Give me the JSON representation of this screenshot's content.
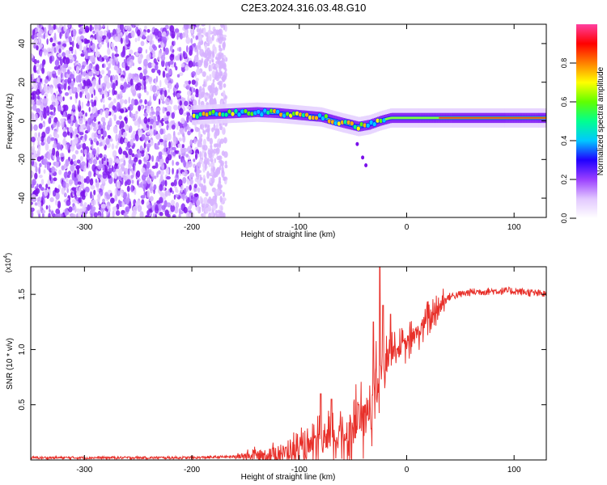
{
  "title": "C2E3.2024.316.03.48.G10",
  "chart_data": [
    {
      "type": "heatmap",
      "xlabel": "Height of straight line (km)",
      "ylabel": "Frequency (Hz)",
      "xlim": [
        -350,
        130
      ],
      "ylim": [
        -50,
        50
      ],
      "x_ticks": [
        -300,
        -200,
        -100,
        0,
        100
      ],
      "x_tick_labels": [
        "-300",
        "-200",
        "-100",
        "0",
        "100"
      ],
      "y_ticks": [
        -40,
        -20,
        0,
        20,
        40
      ],
      "y_tick_labels": [
        "-40",
        "-20",
        "0",
        "20",
        "40"
      ],
      "noise_region_x": [
        -350,
        -180
      ],
      "ridge": {
        "x": [
          -200,
          -180,
          -160,
          -140,
          -120,
          -100,
          -80,
          -60,
          -45,
          -35,
          -25,
          -15,
          0,
          20,
          50,
          80,
          100,
          130
        ],
        "frequency": [
          3,
          3.5,
          4,
          4.5,
          4,
          3,
          2,
          -1,
          -3,
          -2,
          0,
          1.5,
          1.5,
          1.5,
          1.5,
          1.5,
          1.5,
          1.5
        ]
      },
      "colorbar": {
        "label": "Normalized spectral amplitude",
        "ticks": [
          0.0,
          0.2,
          0.4,
          0.6,
          0.8
        ],
        "tick_labels": [
          "0.0",
          "0.2",
          "0.4",
          "0.6",
          "0.8"
        ],
        "range": [
          0,
          1
        ],
        "colors": [
          "#ffffff",
          "#e2c8ff",
          "#9b40ff",
          "#2000ff",
          "#00c8ff",
          "#00ff90",
          "#60ff00",
          "#ffff00",
          "#ff8000",
          "#ff0000",
          "#ff40a0"
        ]
      }
    },
    {
      "type": "line",
      "xlabel": "Height of straight line (km)",
      "ylabel": "SNR (10 * v/v)",
      "y_multiplier": "(x10",
      "y_multiplier_exp": "4",
      "y_multiplier_close": ")",
      "xlim": [
        -350,
        130
      ],
      "ylim": [
        0,
        1.75
      ],
      "x_ticks": [
        -300,
        -200,
        -100,
        0,
        100
      ],
      "x_tick_labels": [
        "-300",
        "-200",
        "-100",
        "0",
        "100"
      ],
      "y_ticks": [
        0.5,
        1.0,
        1.5
      ],
      "y_tick_labels": [
        "0.5",
        "1.0",
        "1.5"
      ],
      "color": "#e8302a",
      "trend": {
        "x": [
          -350,
          -200,
          -160,
          -130,
          -100,
          -80,
          -60,
          -40,
          -30,
          -25,
          -20,
          -10,
          0,
          10,
          20,
          30,
          40,
          60,
          80,
          100,
          130
        ],
        "y": [
          0.02,
          0.02,
          0.03,
          0.05,
          0.08,
          0.14,
          0.22,
          0.35,
          0.6,
          0.75,
          0.95,
          1.0,
          1.05,
          1.15,
          1.28,
          1.4,
          1.48,
          1.52,
          1.53,
          1.53,
          1.5
        ]
      },
      "spikes": [
        {
          "x": -25,
          "y": 1.75
        },
        {
          "x": -22,
          "y": 1.4
        },
        {
          "x": -31,
          "y": 1.25
        },
        {
          "x": -15,
          "y": 1.32
        },
        {
          "x": -80,
          "y": 0.6
        },
        {
          "x": -70,
          "y": 0.55
        },
        {
          "x": -45,
          "y": 0.5
        }
      ]
    }
  ]
}
